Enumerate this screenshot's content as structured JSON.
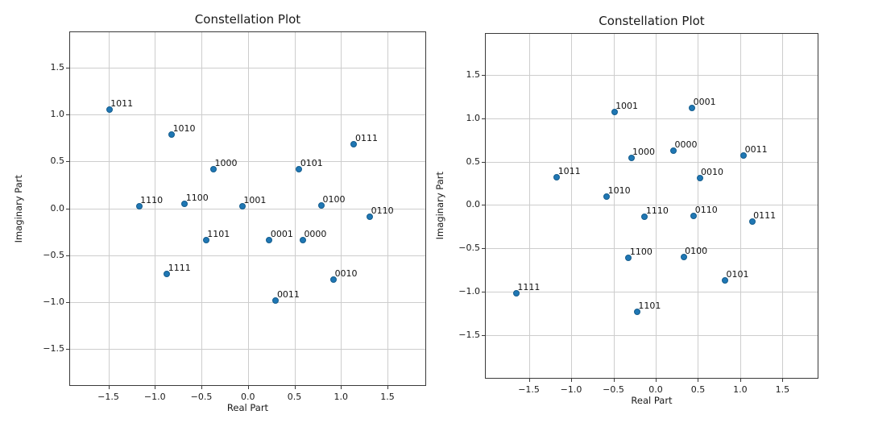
{
  "figure": {
    "background": "#ffffff",
    "marker_color": "#1f77b4",
    "marker_edge_color": "#155d8d",
    "grid_color": "#cdcdcd"
  },
  "chart_data": [
    {
      "type": "scatter",
      "title": "Constellation Plot",
      "xlabel": "Real Part",
      "ylabel": "Imaginary Part",
      "xlim": [
        -1.92,
        1.915
      ],
      "ylim": [
        -1.893,
        1.887
      ],
      "grid": true,
      "legend_position": "none",
      "xticks": [
        -1.5,
        -1.0,
        -0.5,
        0.0,
        0.5,
        1.0,
        1.5
      ],
      "xtick_labels": [
        "−1.5",
        "−1.0",
        "−0.5",
        "0.0",
        "0.5",
        "1.0",
        "1.5"
      ],
      "yticks": [
        -1.5,
        -1.0,
        -0.5,
        0.0,
        0.5,
        1.0,
        1.5
      ],
      "ytick_labels": [
        "−1.5",
        "−1.0",
        "−0.5",
        "0.0",
        "0.5",
        "1.0",
        "1.5"
      ],
      "points": [
        {
          "label": "0000",
          "x": 0.59,
          "y": -0.34
        },
        {
          "label": "0001",
          "x": 0.23,
          "y": -0.34
        },
        {
          "label": "0010",
          "x": 0.92,
          "y": -0.76
        },
        {
          "label": "0011",
          "x": 0.3,
          "y": -0.98
        },
        {
          "label": "0100",
          "x": 0.79,
          "y": 0.03
        },
        {
          "label": "0101",
          "x": 0.55,
          "y": 0.42
        },
        {
          "label": "0110",
          "x": 1.31,
          "y": -0.09
        },
        {
          "label": "0111",
          "x": 1.14,
          "y": 0.68
        },
        {
          "label": "1000",
          "x": -0.37,
          "y": 0.42
        },
        {
          "label": "1001",
          "x": -0.06,
          "y": 0.02
        },
        {
          "label": "1010",
          "x": -0.82,
          "y": 0.79
        },
        {
          "label": "1011",
          "x": -1.49,
          "y": 1.05
        },
        {
          "label": "1100",
          "x": -0.68,
          "y": 0.05
        },
        {
          "label": "1101",
          "x": -0.45,
          "y": -0.34
        },
        {
          "label": "1110",
          "x": -1.17,
          "y": 0.02
        },
        {
          "label": "1111",
          "x": -0.87,
          "y": -0.7
        }
      ]
    },
    {
      "type": "scatter",
      "title": "Constellation Plot",
      "xlabel": "Real Part",
      "ylabel": "Imaginary Part",
      "xlim": [
        -2.02,
        1.925
      ],
      "ylim": [
        -2.005,
        1.985
      ],
      "grid": true,
      "legend_position": "none",
      "xticks": [
        -1.5,
        -1.0,
        -0.5,
        0.0,
        0.5,
        1.0,
        1.5
      ],
      "xtick_labels": [
        "−1.5",
        "−1.0",
        "−0.5",
        "0.0",
        "0.5",
        "1.0",
        "1.5"
      ],
      "yticks": [
        -1.5,
        -1.0,
        -0.5,
        0.0,
        0.5,
        1.0,
        1.5
      ],
      "ytick_labels": [
        "−1.5",
        "−1.0",
        "−0.5",
        "0.0",
        "0.5",
        "1.0",
        "1.5"
      ],
      "points": [
        {
          "label": "0000",
          "x": 0.21,
          "y": 0.63
        },
        {
          "label": "0001",
          "x": 0.43,
          "y": 1.12
        },
        {
          "label": "0010",
          "x": 0.52,
          "y": 0.31
        },
        {
          "label": "0011",
          "x": 1.04,
          "y": 0.57
        },
        {
          "label": "0100",
          "x": 0.33,
          "y": -0.6
        },
        {
          "label": "0101",
          "x": 0.82,
          "y": -0.87
        },
        {
          "label": "0110",
          "x": 0.45,
          "y": -0.13
        },
        {
          "label": "0111",
          "x": 1.14,
          "y": -0.19
        },
        {
          "label": "1000",
          "x": -0.29,
          "y": 0.54
        },
        {
          "label": "1001",
          "x": -0.49,
          "y": 1.07
        },
        {
          "label": "1010",
          "x": -0.58,
          "y": 0.1
        },
        {
          "label": "1011",
          "x": -1.17,
          "y": 0.32
        },
        {
          "label": "1100",
          "x": -0.32,
          "y": -0.61
        },
        {
          "label": "1101",
          "x": -0.22,
          "y": -1.23
        },
        {
          "label": "1110",
          "x": -0.13,
          "y": -0.14
        },
        {
          "label": "1111",
          "x": -1.65,
          "y": -1.02
        }
      ]
    }
  ]
}
